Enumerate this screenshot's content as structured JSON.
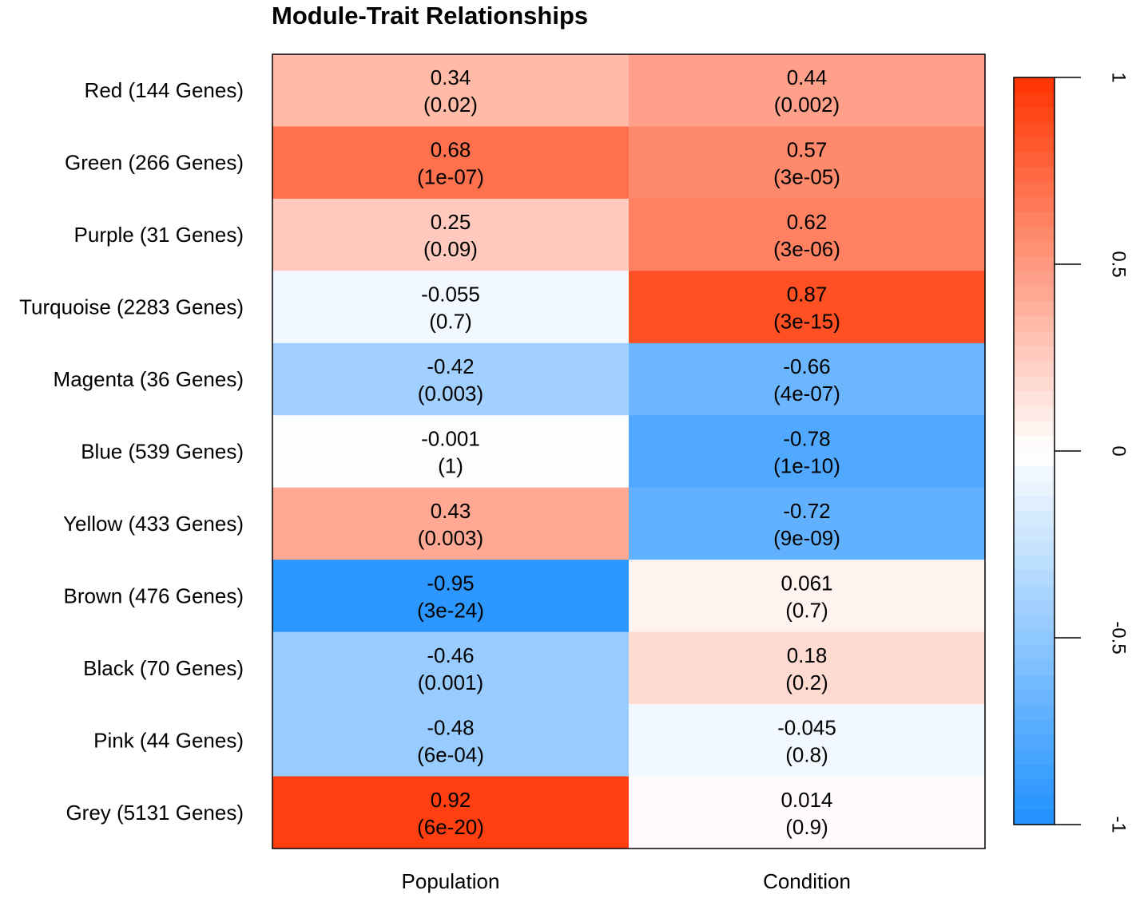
{
  "chart_data": {
    "type": "heatmap",
    "title": "Module-Trait Relationships",
    "columns": [
      "Population",
      "Condition"
    ],
    "rows": [
      "Red (144 Genes)",
      "Green (266 Genes)",
      "Purple (31 Genes)",
      "Turquoise (2283 Genes)",
      "Magenta (36 Genes)",
      "Blue (539 Genes)",
      "Yellow (433 Genes)",
      "Brown (476 Genes)",
      "Black (70 Genes)",
      "Pink (44 Genes)",
      "Grey (5131 Genes)"
    ],
    "correlation_labels": [
      [
        "0.34",
        "0.44"
      ],
      [
        "0.68",
        "0.57"
      ],
      [
        "0.25",
        "0.62"
      ],
      [
        "-0.055",
        "0.87"
      ],
      [
        "-0.42",
        "-0.66"
      ],
      [
        "-0.001",
        "-0.78"
      ],
      [
        "0.43",
        "-0.72"
      ],
      [
        "-0.95",
        "0.061"
      ],
      [
        "-0.46",
        "0.18"
      ],
      [
        "-0.48",
        "-0.045"
      ],
      [
        "0.92",
        "0.014"
      ]
    ],
    "correlations": [
      [
        0.34,
        0.44
      ],
      [
        0.68,
        0.57
      ],
      [
        0.25,
        0.62
      ],
      [
        -0.055,
        0.87
      ],
      [
        -0.42,
        -0.66
      ],
      [
        -0.001,
        -0.78
      ],
      [
        0.43,
        -0.72
      ],
      [
        -0.95,
        0.061
      ],
      [
        -0.46,
        0.18
      ],
      [
        -0.48,
        -0.045
      ],
      [
        0.92,
        0.014
      ]
    ],
    "pvalues": [
      [
        "(0.02)",
        "(0.002)"
      ],
      [
        "(1e-07)",
        "(3e-05)"
      ],
      [
        "(0.09)",
        "(3e-06)"
      ],
      [
        "(0.7)",
        "(3e-15)"
      ],
      [
        "(0.003)",
        "(4e-07)"
      ],
      [
        "(1)",
        "(1e-10)"
      ],
      [
        "(0.003)",
        "(9e-09)"
      ],
      [
        "(3e-24)",
        "(0.7)"
      ],
      [
        "(0.001)",
        "(0.2)"
      ],
      [
        "(6e-04)",
        "(0.8)"
      ],
      [
        "(6e-20)",
        "(0.9)"
      ]
    ],
    "colorbar": {
      "range": [
        -1,
        1
      ],
      "ticks": [
        -1,
        -0.5,
        0,
        0.5,
        1
      ],
      "tick_labels": [
        "-1",
        "-0.5",
        "0",
        "0.5",
        "1"
      ],
      "low_color": "#1E90FF",
      "mid_color": "#FFFFFF",
      "high_color": "#FF3300"
    }
  }
}
